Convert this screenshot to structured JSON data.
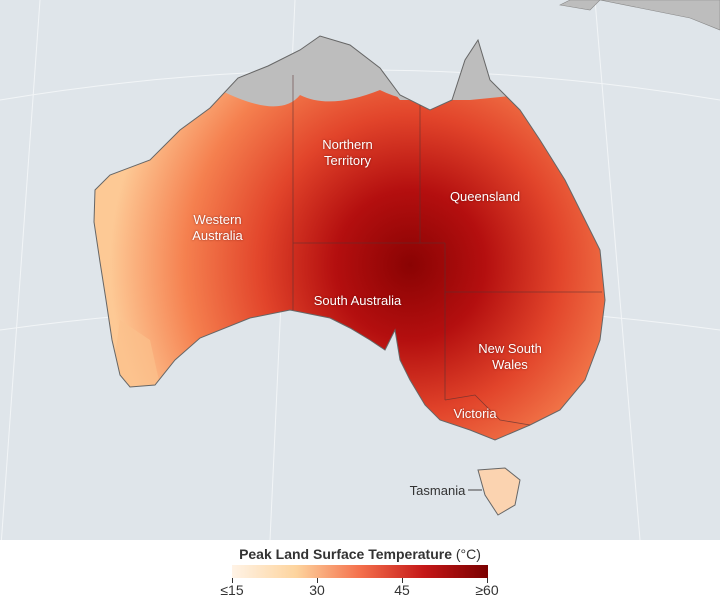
{
  "map": {
    "labels": {
      "nt": "Northern Territory",
      "nt_line1": "Northern",
      "nt_line2": "Territory",
      "wa_line1": "Western",
      "wa_line2": "Australia",
      "qld": "Queensland",
      "sa": "South Australia",
      "nsw_line1": "New South",
      "nsw_line2": "Wales",
      "vic": "Victoria",
      "tas": "Tasmania"
    },
    "colors": {
      "ocean": "#dfe5ea",
      "no_data": "#bdbdbd",
      "low": "#fff3e6",
      "high": "#7a0000"
    }
  },
  "legend": {
    "title": "Peak Land Surface Temperature",
    "unit": "(°C)",
    "ticks": [
      "≤15",
      "30",
      "45",
      "≥60"
    ],
    "range": [
      15,
      60
    ],
    "colors": [
      "#fff3e6",
      "#fdd49e",
      "#f4704c",
      "#c51818",
      "#7a0000"
    ]
  }
}
